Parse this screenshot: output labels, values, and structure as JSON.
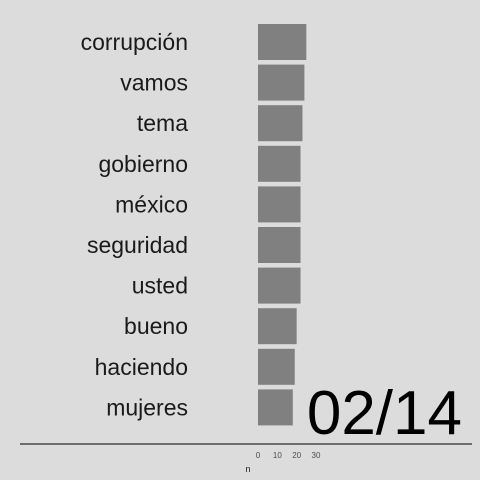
{
  "chart_data": {
    "type": "bar",
    "orientation": "horizontal",
    "categories": [
      "corrupción",
      "vamos",
      "tema",
      "gobierno",
      "méxico",
      "seguridad",
      "usted",
      "bueno",
      "haciendo",
      "mujeres"
    ],
    "values": [
      25,
      24,
      23,
      22,
      22,
      22,
      22,
      20,
      19,
      18
    ],
    "xlabel": "n",
    "ylabel": "",
    "xlim": [
      0,
      30
    ],
    "xticks": [
      0,
      10,
      20,
      30
    ],
    "grid": false,
    "legend": "none",
    "bar_color": "#808080",
    "background_color": "#dcdcdc",
    "date_label": "02/14"
  }
}
